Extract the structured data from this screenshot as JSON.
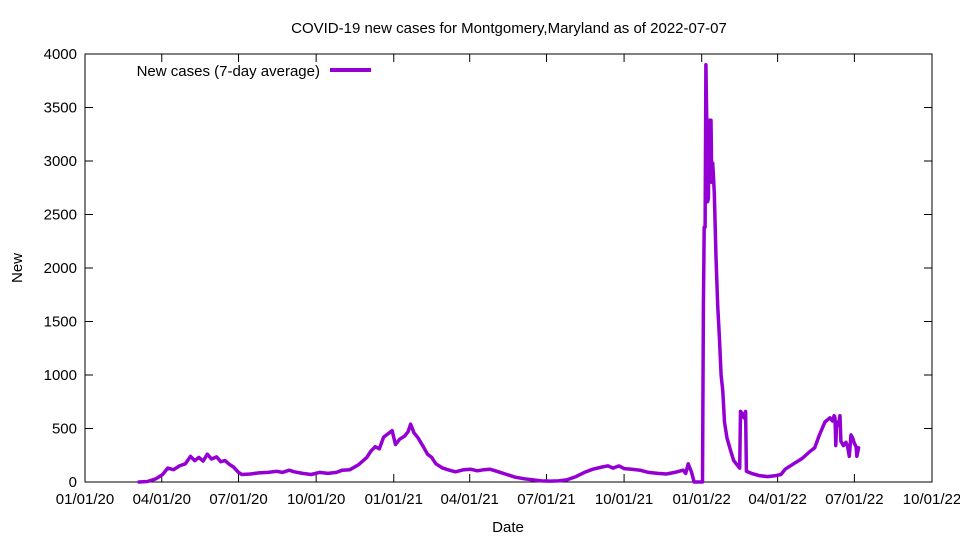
{
  "chart_data": {
    "type": "line",
    "title": "COVID-19 new cases for Montgomery,Maryland as of 2022-07-07",
    "xlabel": "Date",
    "ylabel": "New",
    "xlim": [
      "2020-01-01",
      "2022-10-01"
    ],
    "ylim": [
      0,
      4000
    ],
    "x_ticks": [
      "01/01/20",
      "04/01/20",
      "07/01/20",
      "10/01/20",
      "01/01/21",
      "04/01/21",
      "07/01/21",
      "10/01/21",
      "01/01/22",
      "04/01/22",
      "07/01/22",
      "10/01/22"
    ],
    "x_tick_dates": [
      "2020-01-01",
      "2020-04-01",
      "2020-07-01",
      "2020-10-01",
      "2021-01-01",
      "2021-04-01",
      "2021-07-01",
      "2021-10-01",
      "2022-01-01",
      "2022-04-01",
      "2022-07-01",
      "2022-10-01"
    ],
    "y_ticks": [
      0,
      500,
      1000,
      1500,
      2000,
      2500,
      3000,
      3500,
      4000
    ],
    "grid": false,
    "legend_position": "top-left",
    "series": [
      {
        "name": "New cases (7-day average)",
        "color": "#9400d3",
        "points": [
          [
            "2020-03-05",
            0
          ],
          [
            "2020-03-15",
            5
          ],
          [
            "2020-03-25",
            30
          ],
          [
            "2020-04-02",
            70
          ],
          [
            "2020-04-08",
            130
          ],
          [
            "2020-04-15",
            115
          ],
          [
            "2020-04-22",
            150
          ],
          [
            "2020-04-29",
            170
          ],
          [
            "2020-05-05",
            240
          ],
          [
            "2020-05-10",
            200
          ],
          [
            "2020-05-15",
            230
          ],
          [
            "2020-05-20",
            195
          ],
          [
            "2020-05-25",
            260
          ],
          [
            "2020-05-30",
            215
          ],
          [
            "2020-06-05",
            235
          ],
          [
            "2020-06-10",
            190
          ],
          [
            "2020-06-15",
            200
          ],
          [
            "2020-06-20",
            165
          ],
          [
            "2020-06-25",
            140
          ],
          [
            "2020-07-01",
            90
          ],
          [
            "2020-07-05",
            70
          ],
          [
            "2020-07-15",
            75
          ],
          [
            "2020-07-25",
            85
          ],
          [
            "2020-08-05",
            90
          ],
          [
            "2020-08-15",
            100
          ],
          [
            "2020-08-22",
            90
          ],
          [
            "2020-08-30",
            110
          ],
          [
            "2020-09-05",
            95
          ],
          [
            "2020-09-15",
            80
          ],
          [
            "2020-09-25",
            70
          ],
          [
            "2020-10-05",
            90
          ],
          [
            "2020-10-15",
            80
          ],
          [
            "2020-10-25",
            90
          ],
          [
            "2020-11-01",
            110
          ],
          [
            "2020-11-10",
            115
          ],
          [
            "2020-11-20",
            160
          ],
          [
            "2020-11-30",
            230
          ],
          [
            "2020-12-05",
            290
          ],
          [
            "2020-12-10",
            330
          ],
          [
            "2020-12-15",
            310
          ],
          [
            "2020-12-20",
            420
          ],
          [
            "2020-12-25",
            450
          ],
          [
            "2020-12-30",
            480
          ],
          [
            "2021-01-03",
            350
          ],
          [
            "2021-01-08",
            400
          ],
          [
            "2021-01-14",
            430
          ],
          [
            "2021-01-18",
            470
          ],
          [
            "2021-01-21",
            540
          ],
          [
            "2021-01-25",
            460
          ],
          [
            "2021-01-30",
            410
          ],
          [
            "2021-02-05",
            330
          ],
          [
            "2021-02-10",
            260
          ],
          [
            "2021-02-15",
            230
          ],
          [
            "2021-02-20",
            170
          ],
          [
            "2021-02-28",
            130
          ],
          [
            "2021-03-08",
            110
          ],
          [
            "2021-03-15",
            95
          ],
          [
            "2021-03-25",
            115
          ],
          [
            "2021-04-02",
            120
          ],
          [
            "2021-04-10",
            105
          ],
          [
            "2021-04-18",
            115
          ],
          [
            "2021-04-25",
            120
          ],
          [
            "2021-05-05",
            95
          ],
          [
            "2021-05-15",
            70
          ],
          [
            "2021-05-25",
            45
          ],
          [
            "2021-06-05",
            30
          ],
          [
            "2021-06-15",
            20
          ],
          [
            "2021-06-25",
            10
          ],
          [
            "2021-07-05",
            8
          ],
          [
            "2021-07-15",
            10
          ],
          [
            "2021-07-25",
            20
          ],
          [
            "2021-08-05",
            50
          ],
          [
            "2021-08-15",
            90
          ],
          [
            "2021-08-25",
            120
          ],
          [
            "2021-09-05",
            140
          ],
          [
            "2021-09-12",
            150
          ],
          [
            "2021-09-18",
            130
          ],
          [
            "2021-09-25",
            150
          ],
          [
            "2021-10-01",
            125
          ],
          [
            "2021-10-10",
            120
          ],
          [
            "2021-10-20",
            110
          ],
          [
            "2021-10-30",
            90
          ],
          [
            "2021-11-10",
            80
          ],
          [
            "2021-11-20",
            75
          ],
          [
            "2021-11-30",
            90
          ],
          [
            "2021-12-05",
            100
          ],
          [
            "2021-12-10",
            110
          ],
          [
            "2021-12-13",
            80
          ],
          [
            "2021-12-16",
            170
          ],
          [
            "2021-12-20",
            90
          ],
          [
            "2021-12-23",
            0
          ],
          [
            "2021-12-27",
            0
          ],
          [
            "2021-12-31",
            0
          ],
          [
            "2022-01-02",
            0
          ],
          [
            "2022-01-03",
            1650
          ],
          [
            "2022-01-04",
            2380
          ],
          [
            "2022-01-05",
            2380
          ],
          [
            "2022-01-06",
            3900
          ],
          [
            "2022-01-07",
            3350
          ],
          [
            "2022-01-08",
            2620
          ],
          [
            "2022-01-09",
            2650
          ],
          [
            "2022-01-10",
            3380
          ],
          [
            "2022-01-11",
            2900
          ],
          [
            "2022-01-12",
            3380
          ],
          [
            "2022-01-13",
            2800
          ],
          [
            "2022-01-14",
            2980
          ],
          [
            "2022-01-15",
            2850
          ],
          [
            "2022-01-16",
            2700
          ],
          [
            "2022-01-18",
            2100
          ],
          [
            "2022-01-20",
            1650
          ],
          [
            "2022-01-22",
            1350
          ],
          [
            "2022-01-24",
            1000
          ],
          [
            "2022-01-26",
            850
          ],
          [
            "2022-01-28",
            560
          ],
          [
            "2022-01-31",
            410
          ],
          [
            "2022-02-04",
            300
          ],
          [
            "2022-02-08",
            200
          ],
          [
            "2022-02-12",
            160
          ],
          [
            "2022-02-15",
            130
          ],
          [
            "2022-02-16",
            660
          ],
          [
            "2022-02-18",
            640
          ],
          [
            "2022-02-20",
            600
          ],
          [
            "2022-02-22",
            660
          ],
          [
            "2022-02-23",
            100
          ],
          [
            "2022-03-01",
            80
          ],
          [
            "2022-03-10",
            60
          ],
          [
            "2022-03-20",
            50
          ],
          [
            "2022-03-30",
            60
          ],
          [
            "2022-04-05",
            70
          ],
          [
            "2022-04-10",
            120
          ],
          [
            "2022-04-20",
            170
          ],
          [
            "2022-04-30",
            220
          ],
          [
            "2022-05-10",
            290
          ],
          [
            "2022-05-15",
            320
          ],
          [
            "2022-05-20",
            430
          ],
          [
            "2022-05-27",
            560
          ],
          [
            "2022-06-02",
            600
          ],
          [
            "2022-06-05",
            570
          ],
          [
            "2022-06-07",
            620
          ],
          [
            "2022-06-08",
            600
          ],
          [
            "2022-06-09",
            340
          ],
          [
            "2022-06-10",
            560
          ],
          [
            "2022-06-12",
            530
          ],
          [
            "2022-06-14",
            620
          ],
          [
            "2022-06-15",
            380
          ],
          [
            "2022-06-18",
            340
          ],
          [
            "2022-06-21",
            370
          ],
          [
            "2022-06-23",
            330
          ],
          [
            "2022-06-25",
            240
          ],
          [
            "2022-06-27",
            440
          ],
          [
            "2022-06-29",
            410
          ],
          [
            "2022-07-01",
            360
          ],
          [
            "2022-07-03",
            330
          ],
          [
            "2022-07-04",
            240
          ],
          [
            "2022-07-06",
            320
          ]
        ]
      }
    ]
  }
}
